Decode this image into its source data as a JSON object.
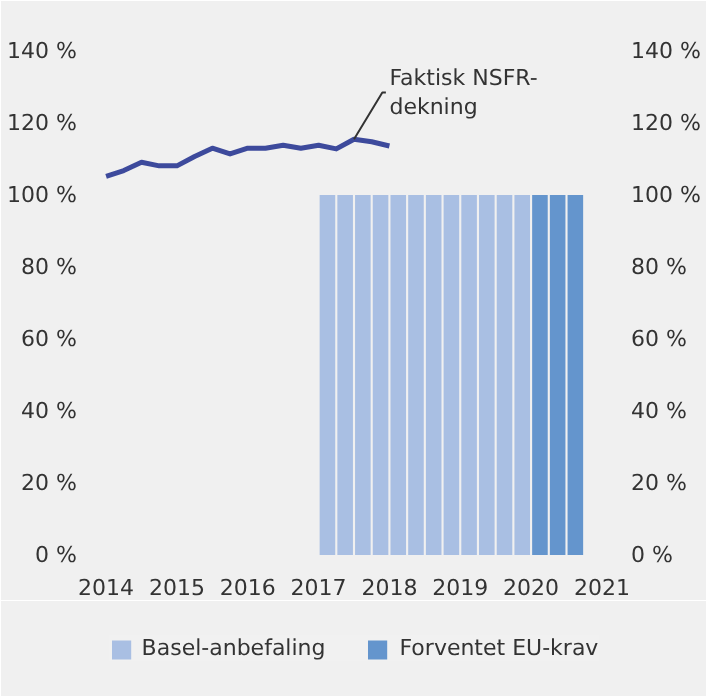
{
  "chart_data": {
    "type": "bar",
    "xlim": [
      2013.9,
      2021.1
    ],
    "xticks": [
      2014,
      2015,
      2016,
      2017,
      2018,
      2019,
      2020,
      2021
    ],
    "ylim": [
      0,
      140
    ],
    "yticks": [
      {
        "value": 0,
        "label": "0 %"
      },
      {
        "value": 20,
        "label": "20 %"
      },
      {
        "value": 40,
        "label": "40 %"
      },
      {
        "value": 60,
        "label": "60 %"
      },
      {
        "value": 80,
        "label": "80 %"
      },
      {
        "value": 100,
        "label": "100 %"
      },
      {
        "value": 120,
        "label": "120 %"
      },
      {
        "value": 140,
        "label": "140 %"
      }
    ],
    "y2lim": [
      0,
      140
    ],
    "y2ticks": [
      {
        "value": 0,
        "label": "0 %"
      },
      {
        "value": 20,
        "label": "20 %"
      },
      {
        "value": 40,
        "label": "40 %"
      },
      {
        "value": 60,
        "label": "60 %"
      },
      {
        "value": 80,
        "label": "80 %"
      },
      {
        "value": 100,
        "label": "100 %"
      },
      {
        "value": 120,
        "label": "120 %"
      },
      {
        "value": 140,
        "label": "140 %"
      }
    ],
    "series": [
      {
        "name": "Basel-anbefaling",
        "color": "#a9bfe3",
        "x": [
          2017.125,
          2017.375,
          2017.625,
          2017.875,
          2018.125,
          2018.375,
          2018.625,
          2018.875,
          2019.125,
          2019.375,
          2019.625,
          2019.875
        ],
        "values": [
          100,
          100,
          100,
          100,
          100,
          100,
          100,
          100,
          100,
          100,
          100,
          100
        ]
      },
      {
        "name": "Forventet EU-krav",
        "color": "#6495cd",
        "x": [
          2020.125,
          2020.375,
          2020.625
        ],
        "values": [
          100,
          100,
          100
        ]
      },
      {
        "type": "line",
        "color": "#3d4a9c",
        "x": [
          2014.0,
          2014.25,
          2014.5,
          2014.75,
          2015.0,
          2015.25,
          2015.5,
          2015.75,
          2016.0,
          2016.25,
          2016.5,
          2016.75,
          2017.0,
          2017.25,
          2017.5,
          2017.75,
          2018.0
        ],
        "values": [
          105.2,
          106.8,
          109.1,
          108.1,
          108.1,
          110.7,
          113.0,
          111.4,
          113.0,
          113.0,
          113.8,
          113.0,
          113.8,
          112.8,
          115.5,
          114.8,
          113.6
        ]
      }
    ],
    "annotations": [
      {
        "text": "Faktisk NSFR-\ndekning",
        "x": 2017.5,
        "y": 115.5
      }
    ],
    "grid": false,
    "legend": "bottom"
  }
}
